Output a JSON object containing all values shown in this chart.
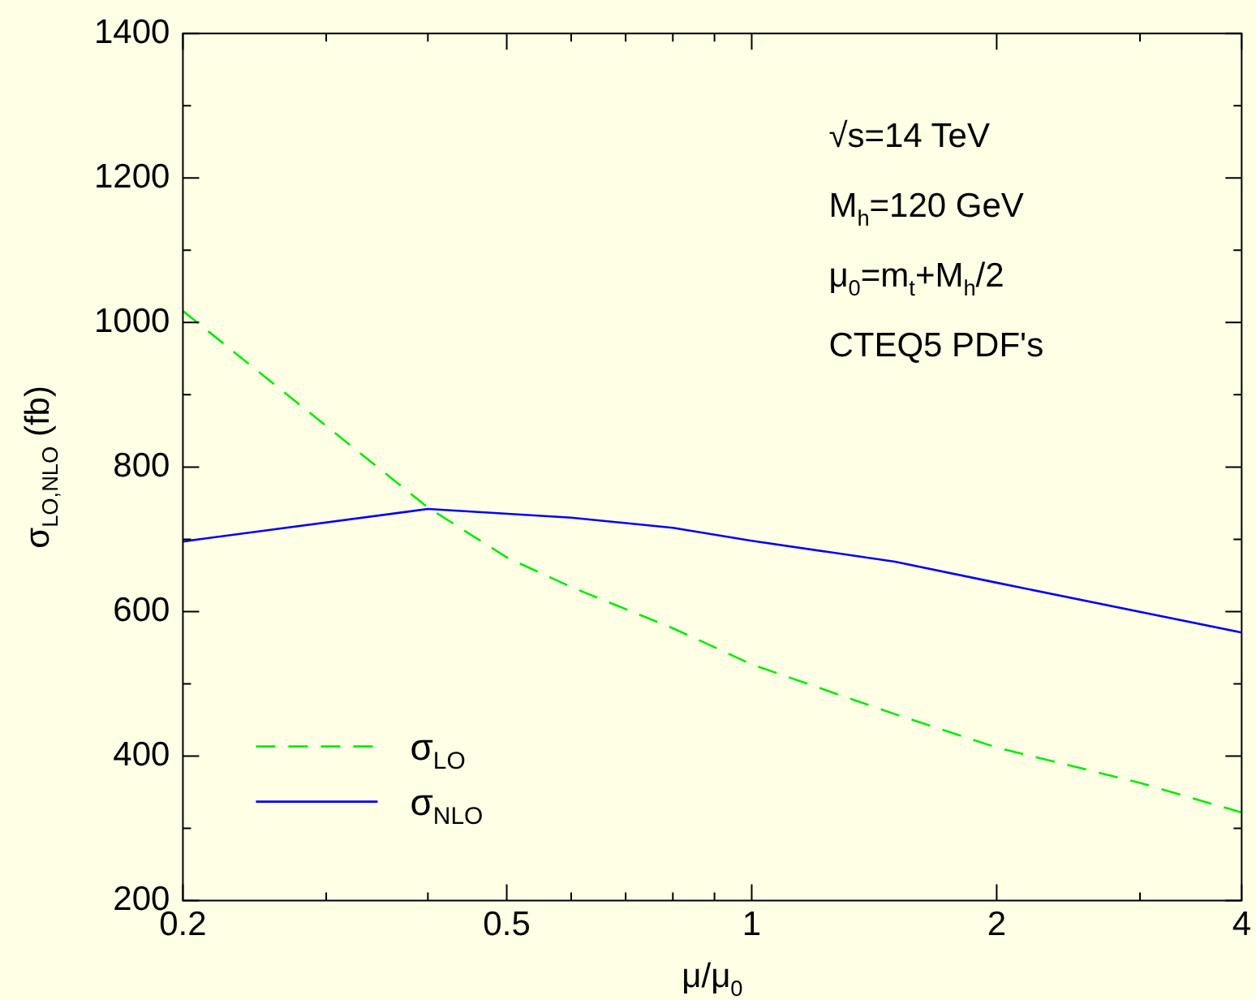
{
  "chart_data": {
    "type": "line",
    "xlabel": "μ/μ$_{0}$",
    "ylabel": "σ$_{LO,NLO}$ (fb)",
    "annotations": [
      "√s=14 TeV",
      "M$_{h}$=120 GeV",
      "μ$_{0}$=m$_{t}$+M$_{h}$/2",
      "CTEQ5 PDF's"
    ],
    "series": [
      {
        "name": "σ$_{LO}$",
        "color": "#00ee00",
        "line_style": "dashed",
        "x": [
          0.2,
          0.4,
          0.5,
          0.6,
          0.8,
          1,
          1.5,
          2,
          3,
          4
        ],
        "values": [
          1016,
          744,
          675,
          634,
          577,
          527,
          458,
          412,
          363,
          322
        ]
      },
      {
        "name": "σ$_{NLO}$",
        "color": "#0000ff",
        "line_style": "solid",
        "x": [
          0.2,
          0.4,
          0.6,
          0.8,
          1,
          1.5,
          2,
          4
        ],
        "values": [
          697,
          742,
          730,
          716,
          698,
          669,
          640,
          571
        ]
      }
    ],
    "log": "x",
    "xlim": [
      0.2,
      4
    ],
    "ylim": [
      200,
      1400
    ],
    "xticks": [
      0.2,
      {
        "value": 0.3,
        "label": null
      },
      {
        "value": 0.4,
        "label": null
      },
      0.5,
      {
        "value": 0.6,
        "label": null
      },
      {
        "value": 0.7,
        "label": null
      },
      {
        "value": 0.8,
        "label": null
      },
      {
        "value": 0.9,
        "label": null
      },
      1,
      2,
      {
        "value": 3,
        "label": null
      },
      4
    ],
    "yticks": [
      200,
      {
        "value": 300,
        "label": null
      },
      400,
      {
        "value": 500,
        "label": null
      },
      600,
      {
        "value": 700,
        "label": null
      },
      800,
      {
        "value": 900,
        "label": null
      },
      1000,
      {
        "value": 1100,
        "label": null
      },
      1200,
      {
        "value": 1300,
        "label": null
      },
      1400
    ],
    "grid": false,
    "legend": "bottom left",
    "marker": "none"
  }
}
